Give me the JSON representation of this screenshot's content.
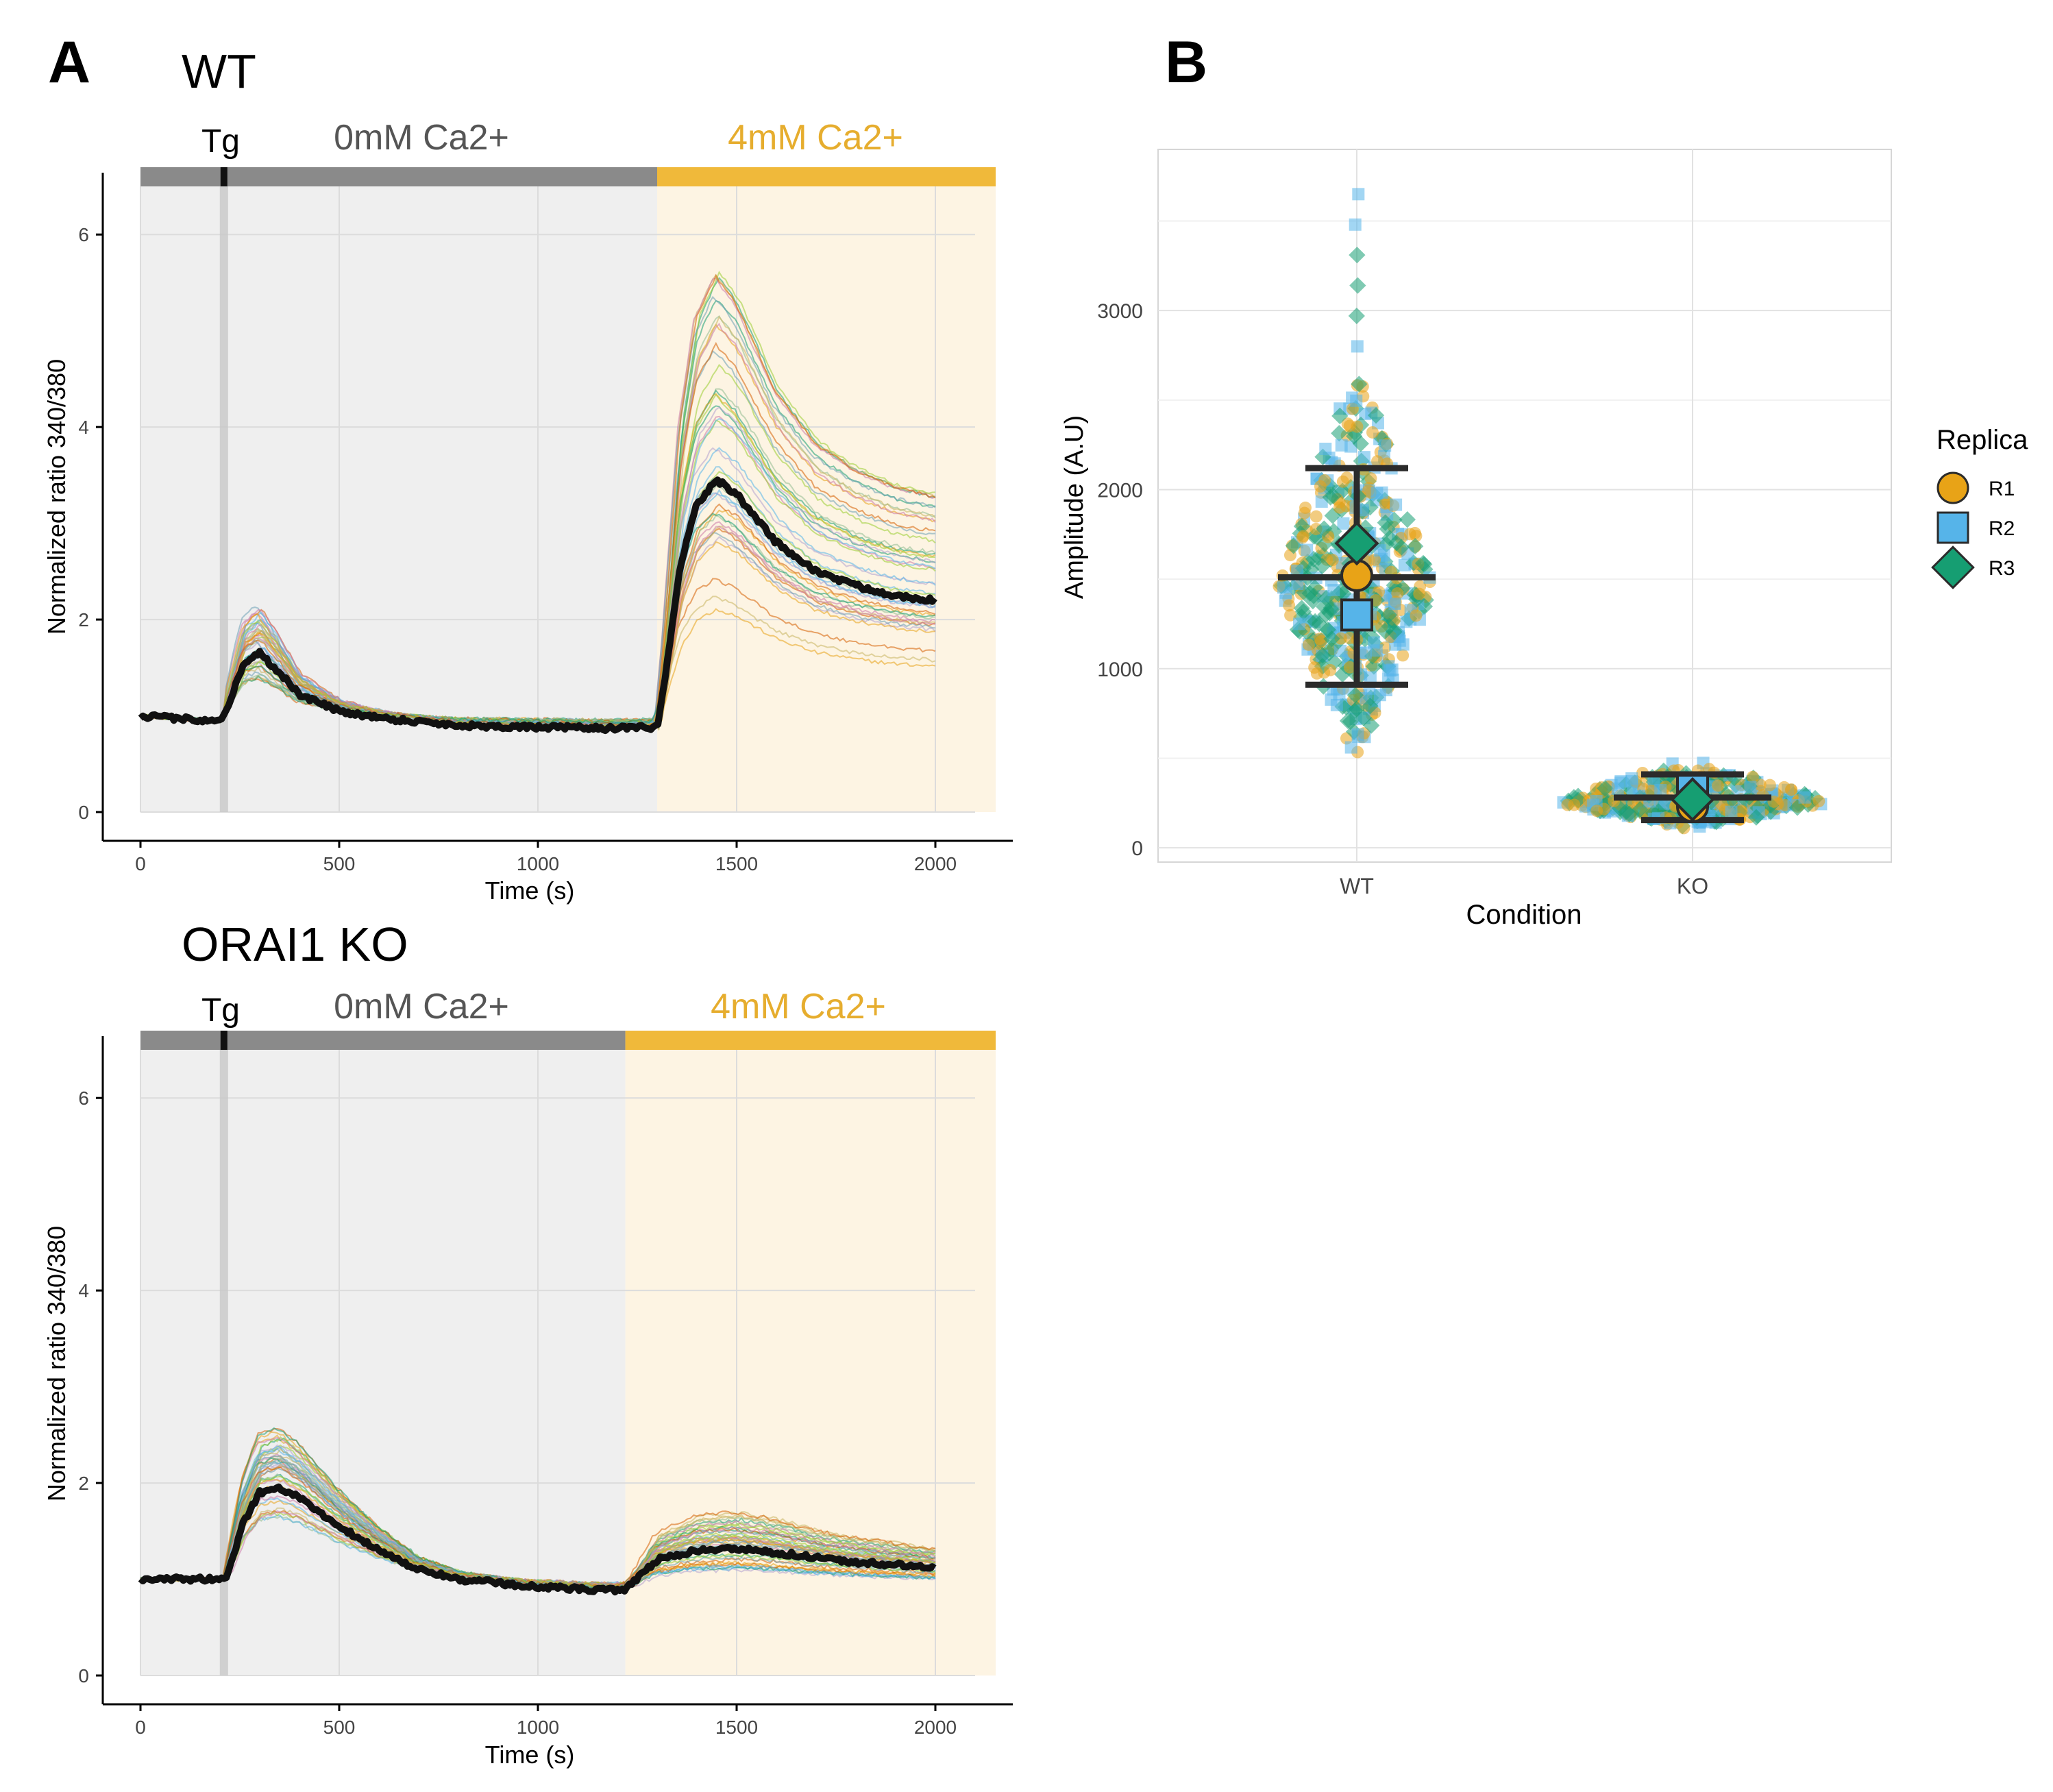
{
  "panel_a": {
    "letter": "A",
    "wt": {
      "title": "WT",
      "tg_label": "Tg",
      "zero_label": "0mM Ca2+",
      "four_label": "4mM Ca2+",
      "xlabel": "Time (s)",
      "ylabel": "Normalized ratio 340/380"
    },
    "ko": {
      "title": "ORAI1 KO",
      "tg_label": "Tg",
      "zero_label": "0mM Ca2+",
      "four_label": "4mM Ca2+",
      "xlabel": "Time (s)",
      "ylabel": "Normalized ratio 340/380"
    }
  },
  "panel_b": {
    "letter": "B",
    "xlabel": "Condition",
    "ylabel": "Amplitude (A.U)",
    "legend_title": "Replica"
  },
  "colors": {
    "zero_bar": "#8a8a8a",
    "four_bar": "#f0b93a",
    "zero_bg": "#efefef",
    "four_bg": "#fdf4e3",
    "mean_line": "#111111",
    "R1": "#e8a317",
    "R2": "#56b4e9",
    "R3": "#169e72"
  },
  "chart_data": [
    {
      "id": "wt_traces",
      "type": "line",
      "title": "WT",
      "xlabel": "Time (s)",
      "ylabel": "Normalized ratio 340/380",
      "xlim": [
        0,
        2100
      ],
      "ylim": [
        0,
        6.5
      ],
      "x_ticks": [
        0,
        500,
        1000,
        1500,
        2000
      ],
      "y_ticks": [
        0,
        2,
        4,
        6
      ],
      "tg_time": 210,
      "phases": [
        {
          "label": "0mM Ca2+",
          "start": 0,
          "end": 1300
        },
        {
          "label": "4mM Ca2+",
          "start": 1300,
          "end": 2170
        }
      ],
      "mean_trace": {
        "x": [
          0,
          100,
          200,
          220,
          260,
          300,
          350,
          400,
          500,
          600,
          700,
          800,
          1000,
          1200,
          1300,
          1320,
          1360,
          1400,
          1450,
          1500,
          1600,
          1700,
          1800,
          1900,
          2000
        ],
        "y": [
          1.0,
          0.97,
          0.95,
          1.1,
          1.55,
          1.65,
          1.45,
          1.22,
          1.05,
          0.98,
          0.94,
          0.9,
          0.88,
          0.87,
          0.88,
          1.4,
          2.6,
          3.2,
          3.45,
          3.3,
          2.8,
          2.5,
          2.35,
          2.25,
          2.2
        ]
      },
      "trace_spread": {
        "tg_peak_range": [
          1.3,
          2.6
        ],
        "ca_peak_range": [
          2.0,
          5.95
        ],
        "end_range": [
          1.4,
          3.4
        ]
      },
      "grid": true
    },
    {
      "id": "ko_traces",
      "type": "line",
      "title": "ORAI1 KO",
      "xlabel": "Time (s)",
      "ylabel": "Normalized ratio 340/380",
      "xlim": [
        0,
        2100
      ],
      "ylim": [
        0,
        6.5
      ],
      "x_ticks": [
        0,
        500,
        1000,
        1500,
        2000
      ],
      "y_ticks": [
        0,
        2,
        4,
        6
      ],
      "tg_time": 210,
      "phases": [
        {
          "label": "0mM Ca2+",
          "start": 0,
          "end": 1220
        },
        {
          "label": "4mM Ca2+",
          "start": 1220,
          "end": 2170
        }
      ],
      "mean_trace": {
        "x": [
          0,
          100,
          200,
          220,
          260,
          300,
          350,
          400,
          500,
          600,
          700,
          800,
          1000,
          1200,
          1220,
          1260,
          1300,
          1400,
          1500,
          1600,
          1700,
          1800,
          1900,
          2000
        ],
        "y": [
          1.0,
          1.0,
          1.0,
          1.05,
          1.6,
          1.9,
          1.95,
          1.85,
          1.55,
          1.3,
          1.1,
          1.0,
          0.92,
          0.88,
          0.9,
          1.05,
          1.2,
          1.3,
          1.32,
          1.28,
          1.22,
          1.18,
          1.15,
          1.12
        ]
      },
      "trace_spread": {
        "tg_peak_range": [
          1.5,
          2.5
        ],
        "ca_peak_range": [
          1.1,
          1.9
        ],
        "end_range": [
          1.05,
          1.25
        ]
      },
      "grid": true
    },
    {
      "id": "amplitude",
      "type": "scatter",
      "xlabel": "Condition",
      "ylabel": "Amplitude (A.U)",
      "categories": [
        "WT",
        "KO"
      ],
      "ylim": [
        -80,
        3900
      ],
      "y_ticks": [
        0,
        1000,
        2000,
        3000
      ],
      "legend": {
        "title": "Replica",
        "position": "right"
      },
      "summary": [
        {
          "condition": "WT",
          "mean": 1510,
          "sd_low": 910,
          "sd_high": 2120
        },
        {
          "condition": "KO",
          "mean": 280,
          "sd_low": 155,
          "sd_high": 410
        }
      ],
      "series": [
        {
          "name": "R1",
          "shape": "circle",
          "means": [
            1520,
            230
          ]
        },
        {
          "name": "R2",
          "shape": "square",
          "means": [
            1300,
            320
          ]
        },
        {
          "name": "R3",
          "shape": "diamond",
          "means": [
            1700,
            270
          ]
        }
      ],
      "distribution": {
        "WT": {
          "center": 1450,
          "min": 480,
          "max": 3650,
          "width_at_center": 0.85
        },
        "KO": {
          "center": 250,
          "min": 100,
          "max": 700,
          "width_at_center": 1.25
        }
      },
      "grid": true
    }
  ]
}
